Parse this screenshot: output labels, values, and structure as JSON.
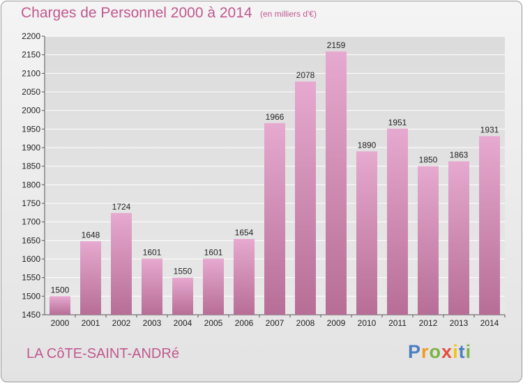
{
  "header": {
    "title": "Charges de Personnel 2000 à 2014",
    "subtitle": "(en milliers d'€)"
  },
  "footer": {
    "town": "LA CôTE-SAINT-ANDRé",
    "brand_letters": [
      {
        "ch": "P",
        "color": "#4a7fc1"
      },
      {
        "ch": "r",
        "color": "#f39a1e"
      },
      {
        "ch": "o",
        "color": "#7cb342"
      },
      {
        "ch": "x",
        "color": "#e84b3c"
      },
      {
        "ch": "i",
        "color": "#f4c20d"
      },
      {
        "ch": "t",
        "color": "#4a7fc1"
      },
      {
        "ch": "i",
        "color": "#7cb342"
      }
    ]
  },
  "colors": {
    "accent": "#c0588f",
    "bar_top": "#e6a9cf",
    "bar_bottom": "#b76e96",
    "grid": "#ffffff",
    "axis_text": "#222222"
  },
  "chart_data": {
    "type": "bar",
    "title": "Charges de Personnel 2000 à 2014",
    "subtitle": "(en milliers d'€)",
    "categories": [
      "2000",
      "2001",
      "2002",
      "2003",
      "2004",
      "2005",
      "2006",
      "2007",
      "2008",
      "2009",
      "2010",
      "2011",
      "2012",
      "2013",
      "2014"
    ],
    "values": [
      1500,
      1648,
      1724,
      1601,
      1550,
      1601,
      1654,
      1966,
      2078,
      2159,
      1890,
      1951,
      1850,
      1863,
      1931
    ],
    "ylim": [
      1450,
      2200
    ],
    "yticks": [
      1450,
      1500,
      1550,
      1600,
      1650,
      1700,
      1750,
      1800,
      1850,
      1900,
      1950,
      2000,
      2050,
      2100,
      2150,
      2200
    ],
    "grid": true,
    "data_labels": true
  }
}
